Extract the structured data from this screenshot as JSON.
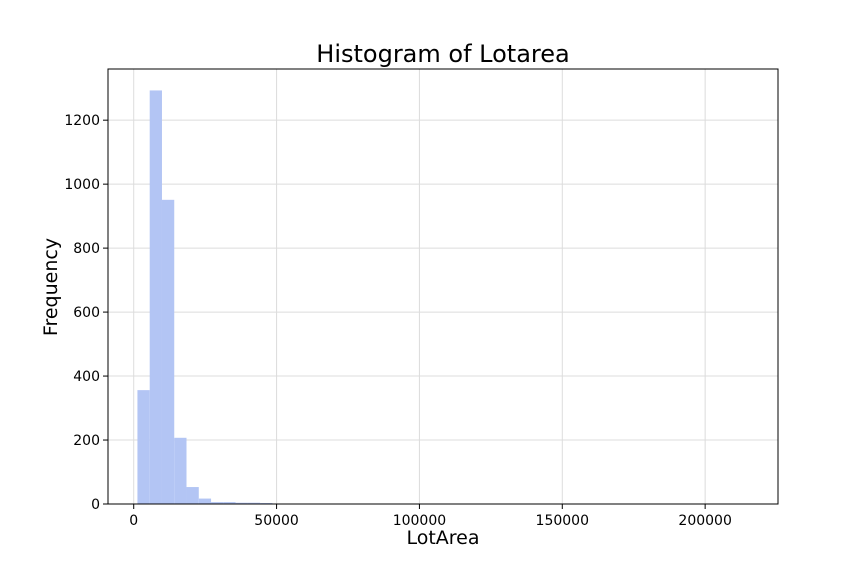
{
  "chart_data": {
    "type": "bar",
    "title": "Histogram of Lotarea",
    "xlabel": "LotArea",
    "ylabel": "Frequency",
    "xlim": [
      -9000,
      225500
    ],
    "ylim": [
      0,
      1360
    ],
    "grid": true,
    "bar_color": "#b3c5f4",
    "bin_width": 4295,
    "bins_start": 1300,
    "values": [
      356,
      1293,
      951,
      207,
      53,
      17,
      6,
      6,
      4,
      4,
      3,
      0,
      0,
      0,
      0,
      0,
      0,
      0,
      0,
      0,
      0,
      0,
      0,
      0,
      0,
      0,
      0,
      0,
      0,
      0,
      0,
      0,
      0,
      0,
      0,
      0,
      0,
      0,
      0,
      0,
      0,
      0,
      0,
      0,
      0,
      0,
      0,
      0,
      0,
      0
    ],
    "x_ticks": [
      0,
      50000,
      100000,
      150000,
      200000
    ],
    "x_tick_labels": [
      "0",
      "50000",
      "100000",
      "150000",
      "200000"
    ],
    "y_ticks": [
      0,
      200,
      400,
      600,
      800,
      1000,
      1200
    ],
    "y_tick_labels": [
      "0",
      "200",
      "400",
      "600",
      "800",
      "1000",
      "1200"
    ]
  }
}
